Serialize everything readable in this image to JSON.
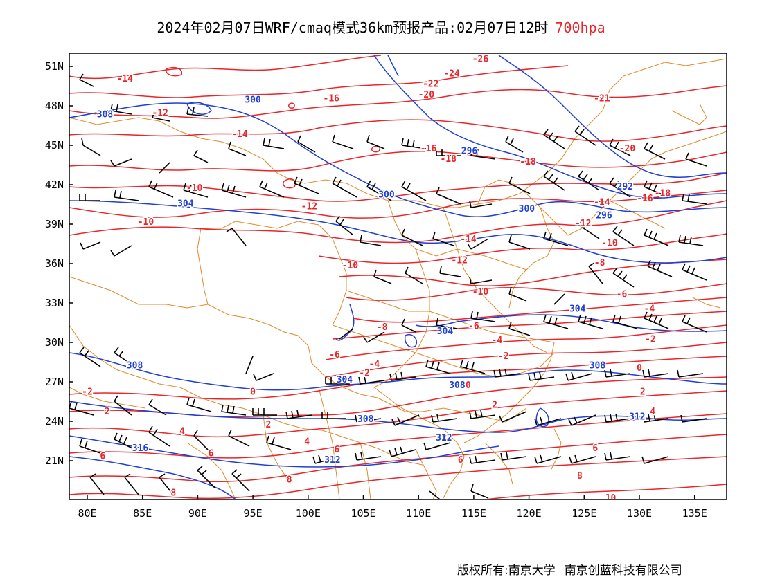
{
  "title": {
    "text": "2024年02月07日WRF/cmaq模式36km预报产品:02月07日12时",
    "level": "700hpa"
  },
  "footer": {
    "owner": "版权所有:南京大学",
    "partner": "南京创蓝科技有限公司"
  },
  "colors": {
    "temperature": "#e8262a",
    "height": "#1f3fd6",
    "border": "#e08a2a",
    "wind": "#000000"
  },
  "map": {
    "lat_labels": [
      "51N",
      "48N",
      "45N",
      "42N",
      "39N",
      "36N",
      "33N",
      "30N",
      "27N",
      "24N",
      "21N"
    ],
    "lon_labels": [
      "80E",
      "85E",
      "90E",
      "95E",
      "100E",
      "105E",
      "110E",
      "115E",
      "120E",
      "125E",
      "130E",
      "135E"
    ],
    "temp_labels": [
      {
        "text": "-14",
        "lon": 83.4,
        "lat": 50.1
      },
      {
        "text": "-12",
        "lon": 86.6,
        "lat": 47.5
      },
      {
        "text": "-14",
        "lon": 93.8,
        "lat": 45.9
      },
      {
        "text": "-16",
        "lon": 102.1,
        "lat": 48.6
      },
      {
        "text": "-26",
        "lon": 115.6,
        "lat": 51.6
      },
      {
        "text": "-24",
        "lon": 113.0,
        "lat": 50.5
      },
      {
        "text": "-22",
        "lon": 111.1,
        "lat": 49.7
      },
      {
        "text": "-20",
        "lon": 110.7,
        "lat": 48.9
      },
      {
        "text": "-21",
        "lon": 126.6,
        "lat": 48.6
      },
      {
        "text": "-10",
        "lon": 89.7,
        "lat": 41.8
      },
      {
        "text": "-10",
        "lon": 85.3,
        "lat": 39.2
      },
      {
        "text": "-12",
        "lon": 100.1,
        "lat": 40.4
      },
      {
        "text": "-16",
        "lon": 110.9,
        "lat": 44.8
      },
      {
        "text": "-18",
        "lon": 112.7,
        "lat": 44.0
      },
      {
        "text": "-18",
        "lon": 119.9,
        "lat": 43.8
      },
      {
        "text": "-20",
        "lon": 128.9,
        "lat": 44.8
      },
      {
        "text": "-16",
        "lon": 130.5,
        "lat": 41.0
      },
      {
        "text": "-18",
        "lon": 132.1,
        "lat": 41.4
      },
      {
        "text": "-14",
        "lon": 126.6,
        "lat": 40.7
      },
      {
        "text": "-12",
        "lon": 124.9,
        "lat": 39.1
      },
      {
        "text": "-14",
        "lon": 114.5,
        "lat": 37.9
      },
      {
        "text": "-10",
        "lon": 127.3,
        "lat": 37.6
      },
      {
        "text": "-12",
        "lon": 113.7,
        "lat": 36.3
      },
      {
        "text": "-10",
        "lon": 103.8,
        "lat": 35.9
      },
      {
        "text": "-8",
        "lon": 126.4,
        "lat": 36.1
      },
      {
        "text": "-10",
        "lon": 115.6,
        "lat": 33.9
      },
      {
        "text": "-6",
        "lon": 128.4,
        "lat": 33.7
      },
      {
        "text": "-4",
        "lon": 130.9,
        "lat": 32.6
      },
      {
        "text": "-8",
        "lon": 106.7,
        "lat": 31.2
      },
      {
        "text": "-6",
        "lon": 115.0,
        "lat": 31.3
      },
      {
        "text": "-4",
        "lon": 117.1,
        "lat": 30.2
      },
      {
        "text": "-2",
        "lon": 131.0,
        "lat": 30.3
      },
      {
        "text": "-6",
        "lon": 102.4,
        "lat": 29.1
      },
      {
        "text": "-4",
        "lon": 106.0,
        "lat": 28.4
      },
      {
        "text": "-2",
        "lon": 117.7,
        "lat": 29.0
      },
      {
        "text": "-2",
        "lon": 105.1,
        "lat": 27.7
      },
      {
        "text": "0",
        "lon": 130.0,
        "lat": 28.1
      },
      {
        "text": "0",
        "lon": 114.5,
        "lat": 26.8
      },
      {
        "text": "0",
        "lon": 95.0,
        "lat": 26.3
      },
      {
        "text": "-2",
        "lon": 80.0,
        "lat": 26.3
      },
      {
        "text": "2",
        "lon": 130.3,
        "lat": 26.3
      },
      {
        "text": "2",
        "lon": 81.8,
        "lat": 24.8
      },
      {
        "text": "2",
        "lon": 116.9,
        "lat": 25.3
      },
      {
        "text": "2",
        "lon": 96.4,
        "lat": 23.8
      },
      {
        "text": "4",
        "lon": 131.2,
        "lat": 24.8
      },
      {
        "text": "4",
        "lon": 88.6,
        "lat": 23.3
      },
      {
        "text": "4",
        "lon": 99.9,
        "lat": 22.5
      },
      {
        "text": "6",
        "lon": 91.2,
        "lat": 21.6
      },
      {
        "text": "6",
        "lon": 102.6,
        "lat": 21.9
      },
      {
        "text": "6",
        "lon": 126.0,
        "lat": 22.0
      },
      {
        "text": "6",
        "lon": 113.8,
        "lat": 21.1
      },
      {
        "text": "6",
        "lon": 81.4,
        "lat": 21.4
      },
      {
        "text": "8",
        "lon": 98.3,
        "lat": 19.6
      },
      {
        "text": "8",
        "lon": 124.6,
        "lat": 19.9
      },
      {
        "text": "8",
        "lon": 87.8,
        "lat": 18.6
      },
      {
        "text": "10",
        "lon": 127.4,
        "lat": 18.2
      }
    ],
    "height_labels": [
      {
        "text": "300",
        "lon": 95.0,
        "lat": 48.5
      },
      {
        "text": "308",
        "lon": 81.6,
        "lat": 47.4
      },
      {
        "text": "296",
        "lon": 114.6,
        "lat": 44.6
      },
      {
        "text": "292",
        "lon": 128.7,
        "lat": 41.9
      },
      {
        "text": "300",
        "lon": 107.1,
        "lat": 41.3
      },
      {
        "text": "304",
        "lon": 88.9,
        "lat": 40.6
      },
      {
        "text": "300",
        "lon": 119.8,
        "lat": 40.2
      },
      {
        "text": "296",
        "lon": 126.8,
        "lat": 39.7
      },
      {
        "text": "304",
        "lon": 124.4,
        "lat": 32.6
      },
      {
        "text": "304",
        "lon": 112.4,
        "lat": 30.9
      },
      {
        "text": "308",
        "lon": 84.3,
        "lat": 28.3
      },
      {
        "text": "308",
        "lon": 126.2,
        "lat": 28.3
      },
      {
        "text": "304",
        "lon": 103.3,
        "lat": 27.2
      },
      {
        "text": "308",
        "lon": 113.5,
        "lat": 26.8
      },
      {
        "text": "308",
        "lon": 105.2,
        "lat": 24.2
      },
      {
        "text": "312",
        "lon": 129.8,
        "lat": 24.4
      },
      {
        "text": "316",
        "lon": 84.8,
        "lat": 22.0
      },
      {
        "text": "312",
        "lon": 112.3,
        "lat": 22.8
      },
      {
        "text": "312",
        "lon": 102.2,
        "lat": 21.1
      }
    ]
  }
}
